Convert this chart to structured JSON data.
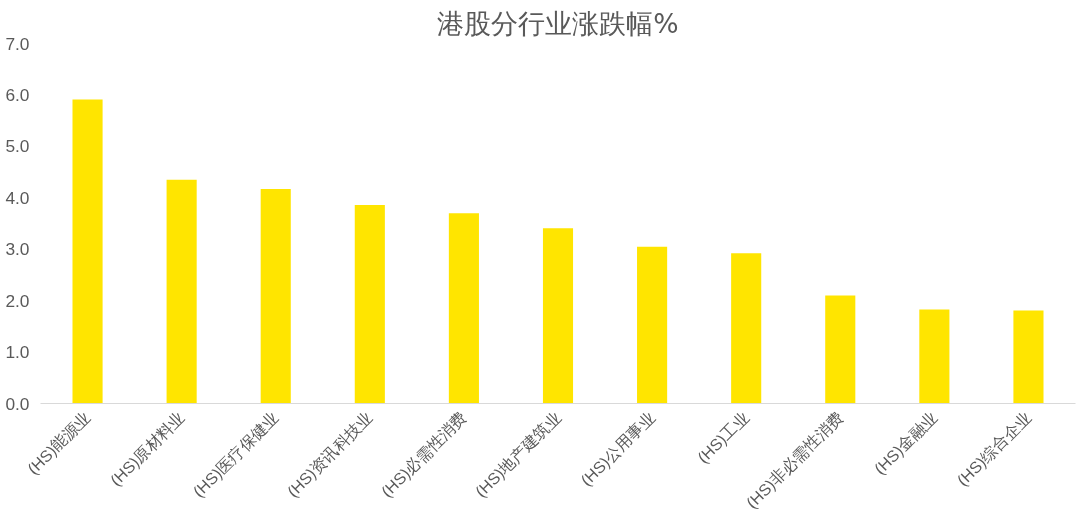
{
  "chart_data": {
    "type": "bar",
    "title": "港股分行业涨跌幅%",
    "categories": [
      "(HS)能源业",
      "(HS)原材料业",
      "(HS)医疗保健业",
      "(HS)资讯科技业",
      "(HS)必需性消费",
      "(HS)地产建筑业",
      "(HS)公用事业",
      "(HS)工业",
      "(HS)非必需性消费",
      "(HS)金融业",
      "(HS)综合企业"
    ],
    "values": [
      5.91,
      4.35,
      4.17,
      3.86,
      3.7,
      3.41,
      3.05,
      2.92,
      2.1,
      1.83,
      1.81
    ],
    "color": "#ffe500",
    "ylim": [
      0,
      7
    ],
    "yticks": [
      {
        "value": 0,
        "label": "0.0"
      },
      {
        "value": 1,
        "label": "1.0"
      },
      {
        "value": 2,
        "label": "2.0"
      },
      {
        "value": 3,
        "label": "3.0"
      },
      {
        "value": 4,
        "label": "4.0"
      },
      {
        "value": 5,
        "label": "5.0"
      },
      {
        "value": 6,
        "label": "6.0"
      },
      {
        "value": 7,
        "label": "7.0"
      }
    ],
    "grid": false
  }
}
